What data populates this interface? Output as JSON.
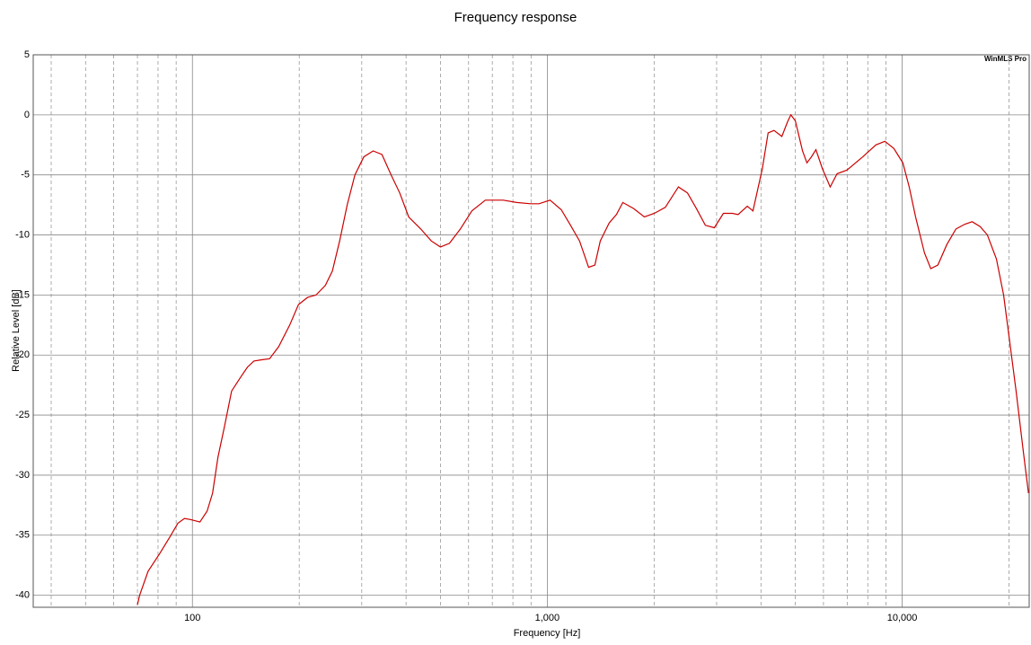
{
  "chart_data": {
    "type": "line",
    "title": "Frequency response",
    "annotation": "WinMLS Pro",
    "x_label": "Frequency [Hz]",
    "y_label": "Relative Level [dB]",
    "log_x": true,
    "grid": true,
    "xlim": [
      35.6,
      22800
    ],
    "ylim": [
      -41,
      5
    ],
    "xticks": [
      100,
      {
        "value": 1000,
        "label": "1,000"
      },
      {
        "value": 10000,
        "label": "10,000"
      }
    ],
    "x_minor_grid": [
      40,
      50,
      60,
      70,
      80,
      90,
      200,
      300,
      400,
      500,
      600,
      700,
      800,
      900,
      2000,
      3000,
      4000,
      5000,
      6000,
      7000,
      8000,
      9000,
      20000
    ],
    "yticks": [
      5,
      0,
      -5,
      -10,
      -15,
      -20,
      -25,
      -30,
      -35,
      -40
    ],
    "series": [
      {
        "color": "#cc0000",
        "x": [
          70,
          71,
          75,
          81,
          87,
          91,
          95,
          99,
          105,
          110,
          114,
          118,
          123,
          129,
          137,
          143,
          149,
          156,
          165,
          175,
          188,
          199,
          211,
          223,
          237,
          248,
          260,
          273,
          287,
          304,
          323,
          342,
          363,
          384,
          407,
          440,
          471,
          500,
          530,
          569,
          613,
          669,
          751,
          820,
          896,
          948,
          1018,
          1095,
          1163,
          1233,
          1307,
          1362,
          1410,
          1494,
          1566,
          1632,
          1751,
          1877,
          2003,
          2150,
          2342,
          2483,
          2630,
          2789,
          2956,
          3135,
          3323,
          3450,
          3660,
          3798,
          4036,
          4191,
          4352,
          4581,
          4751,
          4856,
          4999,
          5238,
          5390,
          5551,
          5712,
          5961,
          6270,
          6557,
          6988,
          7746,
          8432,
          8938,
          9476,
          10046,
          10467,
          10910,
          11557,
          12038,
          12603,
          13365,
          14173,
          15029,
          15747,
          16590,
          17383,
          18433,
          19314,
          20112,
          20943,
          21944,
          22700
        ],
        "values": [
          -40.8,
          -40,
          -38,
          -36.5,
          -35,
          -34,
          -33.6,
          -33.7,
          -33.9,
          -33,
          -31.5,
          -28.5,
          -26,
          -23,
          -21.8,
          -21,
          -20.5,
          -20.4,
          -20.3,
          -19.3,
          -17.5,
          -15.8,
          -15.2,
          -15,
          -14.2,
          -13,
          -10.5,
          -7.5,
          -5,
          -3.5,
          -3,
          -3.3,
          -5,
          -6.5,
          -8.5,
          -9.5,
          -10.5,
          -11,
          -10.7,
          -9.5,
          -8,
          -7.1,
          -7.1,
          -7.3,
          -7.4,
          -7.4,
          -7.1,
          -7.9,
          -9.2,
          -10.5,
          -12.7,
          -12.5,
          -10.5,
          -9,
          -8.3,
          -7.3,
          -7.8,
          -8.5,
          -8.2,
          -7.7,
          -6,
          -6.5,
          -7.8,
          -9.2,
          -9.4,
          -8.2,
          -8.2,
          -8.3,
          -7.6,
          -8,
          -4.5,
          -1.5,
          -1.3,
          -1.8,
          -0.6,
          0,
          -0.5,
          -3,
          -4,
          -3.5,
          -2.9,
          -4.5,
          -6,
          -4.9,
          -4.6,
          -3.5,
          -2.5,
          -2.2,
          -2.8,
          -4,
          -6,
          -8.5,
          -11.5,
          -12.8,
          -12.5,
          -10.8,
          -9.5,
          -9.1,
          -8.9,
          -9.3,
          -10,
          -12,
          -15,
          -19,
          -23,
          -28,
          -31.5
        ]
      }
    ]
  }
}
